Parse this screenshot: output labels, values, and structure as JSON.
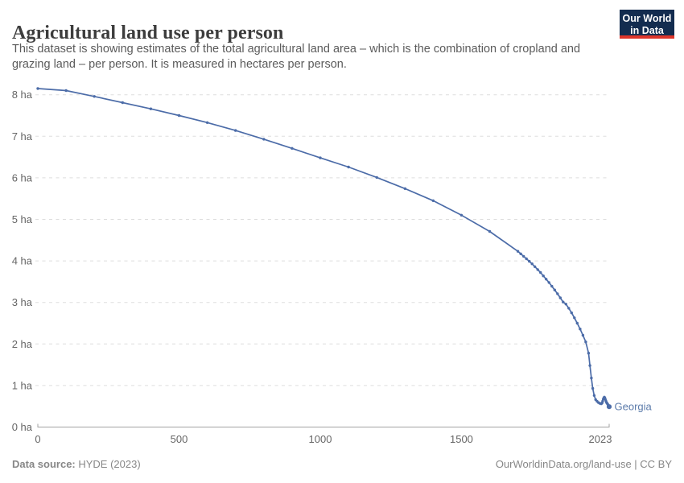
{
  "header": {
    "title": "Agricultural land use per person",
    "subtitle": "This dataset is showing estimates of the total agricultural land area – which is the combination of cropland and grazing land – per person. It is measured in hectares per person.",
    "logo": {
      "line1": "Our World",
      "line2": "in Data",
      "bg_color": "#132c4f",
      "accent_color": "#dd352a"
    }
  },
  "chart_data": {
    "type": "line",
    "title": "Agricultural land use per person",
    "unit": "hectares per person",
    "entity": "Georgia",
    "end_label": "Georgia",
    "x_ticks": [
      0,
      500,
      1000,
      1500,
      2023
    ],
    "y_ticks": [
      0,
      1,
      2,
      3,
      4,
      5,
      6,
      7,
      8
    ],
    "y_tick_suffix": " ha",
    "xlim": [
      0,
      2023
    ],
    "ylim": [
      0,
      8
    ],
    "grid": "horizontal-dashed",
    "legend_position": "end-of-line",
    "line_color": "#4c6ca8",
    "marker_color": "#4c6ca8",
    "end_label_color": "#5d7cab",
    "axis_color": "#a3a3a3",
    "grid_color": "#dddddd",
    "tick_label_color": "#666666",
    "series": [
      {
        "name": "Georgia",
        "points": [
          [
            0,
            8.15
          ],
          [
            100,
            8.1
          ],
          [
            200,
            7.96
          ],
          [
            300,
            7.81
          ],
          [
            400,
            7.66
          ],
          [
            500,
            7.5
          ],
          [
            600,
            7.33
          ],
          [
            700,
            7.14
          ],
          [
            800,
            6.93
          ],
          [
            900,
            6.71
          ],
          [
            1000,
            6.48
          ],
          [
            1100,
            6.26
          ],
          [
            1200,
            6.01
          ],
          [
            1300,
            5.74
          ],
          [
            1400,
            5.45
          ],
          [
            1500,
            5.1
          ],
          [
            1600,
            4.71
          ],
          [
            1700,
            4.23
          ],
          [
            1710,
            4.17
          ],
          [
            1720,
            4.11
          ],
          [
            1730,
            4.05
          ],
          [
            1740,
            3.99
          ],
          [
            1750,
            3.93
          ],
          [
            1760,
            3.86
          ],
          [
            1770,
            3.79
          ],
          [
            1780,
            3.72
          ],
          [
            1790,
            3.64
          ],
          [
            1800,
            3.56
          ],
          [
            1810,
            3.48
          ],
          [
            1820,
            3.39
          ],
          [
            1830,
            3.3
          ],
          [
            1840,
            3.21
          ],
          [
            1850,
            3.11
          ],
          [
            1860,
            3.01
          ],
          [
            1870,
            2.96
          ],
          [
            1880,
            2.86
          ],
          [
            1890,
            2.75
          ],
          [
            1900,
            2.63
          ],
          [
            1910,
            2.5
          ],
          [
            1920,
            2.36
          ],
          [
            1930,
            2.21
          ],
          [
            1940,
            2.05
          ],
          [
            1950,
            1.78
          ],
          [
            1955,
            1.48
          ],
          [
            1960,
            1.18
          ],
          [
            1965,
            0.93
          ],
          [
            1970,
            0.76
          ],
          [
            1975,
            0.66
          ],
          [
            1980,
            0.62
          ],
          [
            1985,
            0.59
          ],
          [
            1990,
            0.57
          ],
          [
            1995,
            0.56
          ],
          [
            1998,
            0.58
          ],
          [
            2000,
            0.62
          ],
          [
            2002,
            0.67
          ],
          [
            2004,
            0.7
          ],
          [
            2006,
            0.72
          ],
          [
            2008,
            0.7
          ],
          [
            2010,
            0.66
          ],
          [
            2012,
            0.62
          ],
          [
            2014,
            0.59
          ],
          [
            2016,
            0.57
          ],
          [
            2018,
            0.55
          ],
          [
            2020,
            0.52
          ],
          [
            2023,
            0.49
          ]
        ]
      }
    ]
  },
  "footer": {
    "datasource_label": "Data source:",
    "datasource_value": " HYDE (2023)",
    "credit": "OurWorldinData.org/land-use | CC BY"
  }
}
